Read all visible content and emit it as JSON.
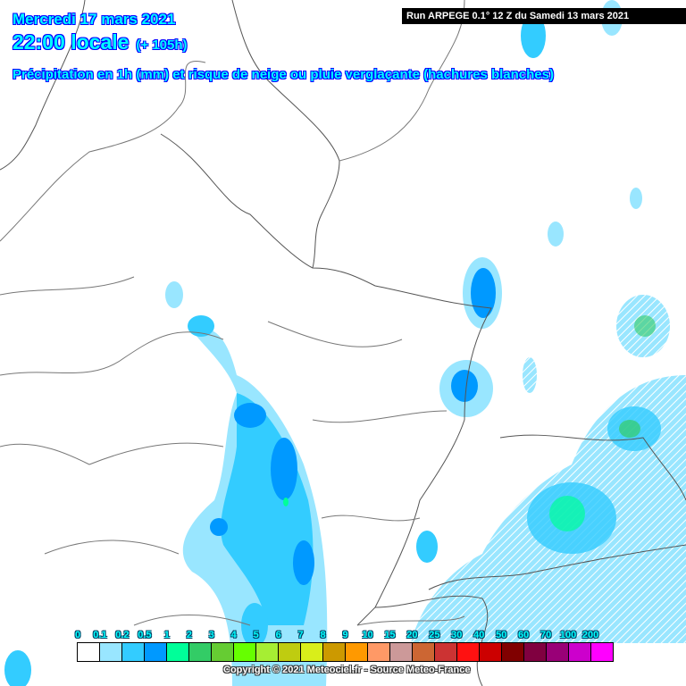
{
  "header": {
    "date": "Mercredi 17 mars 2021",
    "time": "22:00 locale",
    "lead": "(+ 105h)",
    "description": "Précipitation en 1h (mm) et risque de neige ou pluie verglaçante (hachures blanches)"
  },
  "run_label": "Run ARPEGE 0.1° 12 Z du Samedi 13 mars 2021",
  "legend": {
    "labels": [
      "0",
      "0.1",
      "0.2",
      "0.5",
      "1",
      "2",
      "3",
      "4",
      "5",
      "6",
      "7",
      "8",
      "9",
      "10",
      "15",
      "20",
      "25",
      "30",
      "40",
      "50",
      "60",
      "70",
      "100",
      "200"
    ],
    "colors": [
      "#ffffff",
      "#99e6ff",
      "#33ccff",
      "#0099ff",
      "#00ff99",
      "#33cc66",
      "#66cc33",
      "#66ff00",
      "#a6ee33",
      "#bfcc10",
      "#d9ee1a",
      "#cc9900",
      "#ff9900",
      "#ff9966",
      "#cc9999",
      "#cc6633",
      "#cc3333",
      "#ff1111",
      "#cc0000",
      "#800000",
      "#800040",
      "#990077",
      "#cc00cc",
      "#ff00ff"
    ]
  },
  "copyright": "Copyright © 2021 Meteociel.fr - Source Meteo-France"
}
